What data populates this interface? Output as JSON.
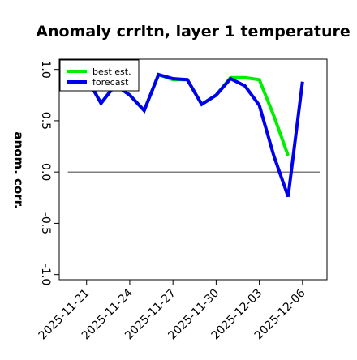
{
  "chart_data": {
    "type": "line",
    "title": "Anomaly crrltn, layer 1 temperature",
    "xlabel": "",
    "ylabel": "anom. corr.",
    "ylim": [
      -1.05,
      1.1
    ],
    "yticks": [
      -1.0,
      -0.5,
      0.0,
      0.5,
      1.0
    ],
    "ytick_labels": [
      "-1.0",
      "-0.5",
      "0.0",
      "0.5",
      "1.0"
    ],
    "xticks": [
      1,
      4,
      7,
      10,
      13,
      16
    ],
    "xtick_labels": [
      "2025-11-21",
      "2025-11-24",
      "2025-11-27",
      "2025-11-30",
      "2025-12-03",
      "2025-12-06"
    ],
    "xtick_colors": [
      "#000000",
      "#000000",
      "#008000",
      "#000000",
      "#000000",
      "#000000"
    ],
    "xlim": [
      -0.9,
      17.7
    ],
    "reference_line": 0.0,
    "grid": false,
    "legend": "top-left",
    "series": [
      {
        "name": "best est.",
        "color": "#00ee00",
        "x": [
          1,
          2,
          3,
          4,
          5,
          6,
          7,
          8,
          9,
          10,
          11,
          12,
          13,
          14,
          15
        ],
        "values": [
          0.93,
          0.67,
          0.85,
          0.75,
          0.6,
          0.95,
          0.9,
          0.9,
          0.66,
          0.75,
          0.92,
          0.92,
          0.9,
          0.55,
          0.16
        ]
      },
      {
        "name": "forecast",
        "color": "#0000ee",
        "x": [
          1,
          2,
          3,
          4,
          5,
          6,
          7,
          8,
          9,
          10,
          11,
          12,
          13,
          14,
          15,
          16
        ],
        "values": [
          0.92,
          0.67,
          0.85,
          0.75,
          0.6,
          0.95,
          0.91,
          0.9,
          0.66,
          0.75,
          0.91,
          0.84,
          0.65,
          0.16,
          -0.24,
          0.88
        ]
      }
    ]
  }
}
